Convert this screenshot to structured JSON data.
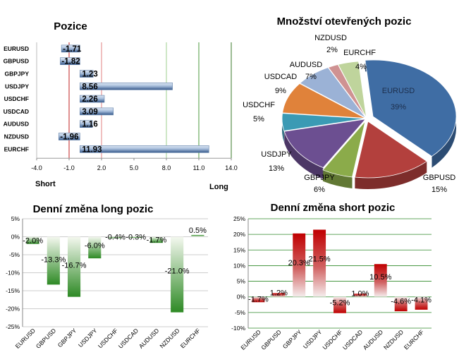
{
  "chart_data": [
    {
      "type": "bar",
      "orientation": "horizontal",
      "title": "Pozice",
      "categories": [
        "EURUSD",
        "GBPUSD",
        "GBPJPY",
        "USDJPY",
        "USDCHF",
        "USDCAD",
        "AUDUSD",
        "NZDUSD",
        "EURCHF"
      ],
      "values": [
        -1.71,
        -1.82,
        1.23,
        8.56,
        2.26,
        3.09,
        1.16,
        -1.96,
        11.93
      ],
      "value_labels": [
        "-1.71",
        "-1.82",
        "1.23",
        "8.56",
        "2.26",
        "3.09",
        "1.16",
        "-1.96",
        "11.93"
      ],
      "xlim": [
        -4,
        14
      ],
      "xticks": [
        "-4.0",
        "-1.0",
        "2.0",
        "5.0",
        "8.0",
        "11.0",
        "14.0"
      ],
      "xtick_values": [
        -4,
        -1,
        2,
        5,
        8,
        11,
        14
      ],
      "reference_lines": [
        -1,
        2,
        8,
        11
      ],
      "left_label": "Short",
      "right_label": "Long"
    },
    {
      "type": "pie",
      "title": "Množství otevřených pozic",
      "slices": [
        {
          "name": "EURUSD",
          "pct": "39%",
          "value": 39,
          "color": "#3f6da4"
        },
        {
          "name": "GBPUSD",
          "pct": "15%",
          "value": 15,
          "color": "#b3403d"
        },
        {
          "name": "GBPJPY",
          "pct": "6%",
          "value": 6,
          "color": "#8bab4a"
        },
        {
          "name": "USDJPY",
          "pct": "13%",
          "value": 13,
          "color": "#6c4f91"
        },
        {
          "name": "USDCHF",
          "pct": "5%",
          "value": 5,
          "color": "#3b9ab4"
        },
        {
          "name": "USDCAD",
          "pct": "9%",
          "value": 9,
          "color": "#e0823a"
        },
        {
          "name": "AUDUSD",
          "pct": "7%",
          "value": 7,
          "color": "#9bb2d6"
        },
        {
          "name": "NZDUSD",
          "pct": "2%",
          "value": 2,
          "color": "#cf9292"
        },
        {
          "name": "EURCHF",
          "pct": "4%",
          "value": 4,
          "color": "#bfd49c"
        }
      ]
    },
    {
      "type": "bar",
      "title": "Denní změna long pozic",
      "categories": [
        "EURUSD",
        "GBPUSD",
        "GBPJPY",
        "USDJPY",
        "USDCHF",
        "USDCAD",
        "AUDUSD",
        "NZDUSD",
        "EURCHF"
      ],
      "values": [
        -2.0,
        -13.3,
        -16.7,
        -6.0,
        -0.4,
        -0.3,
        -1.7,
        -21.0,
        0.5
      ],
      "value_labels": [
        "-2.0%",
        "-13.3%",
        "-16.7%",
        "-6.0%",
        "-0.4%",
        "-0.3%",
        "-1.7%",
        "-21.0%",
        "0.5%"
      ],
      "ylim": [
        -25,
        5
      ],
      "yticks": [
        "5%",
        "0%",
        "-5%",
        "-10%",
        "-15%",
        "-20%",
        "-25%"
      ],
      "ytick_values": [
        5,
        0,
        -5,
        -10,
        -15,
        -20,
        -25
      ],
      "color": "#2f8a2a"
    },
    {
      "type": "bar",
      "title": "Denní změna short pozic",
      "categories": [
        "EURUSD",
        "GBPUSD",
        "GBPJPY",
        "USDJPY",
        "USDCHF",
        "USDCAD",
        "AUDUSD",
        "NZDUSD",
        "EURCHF"
      ],
      "values": [
        -1.7,
        1.2,
        20.3,
        21.5,
        -5.2,
        1.0,
        10.5,
        -4.6,
        -4.1
      ],
      "value_labels": [
        "-1.7%",
        "1.2%",
        "20.3%",
        "21.5%",
        "-5.2%",
        "1.0%",
        "10.5%",
        "-4.6%",
        "-4.1%"
      ],
      "ylim": [
        -10,
        25
      ],
      "yticks": [
        "25%",
        "20%",
        "15%",
        "10%",
        "5%",
        "0%",
        "-5%",
        "-10%"
      ],
      "ytick_values": [
        25,
        20,
        15,
        10,
        5,
        0,
        -5,
        -10
      ],
      "color": "#c40d0d"
    }
  ]
}
